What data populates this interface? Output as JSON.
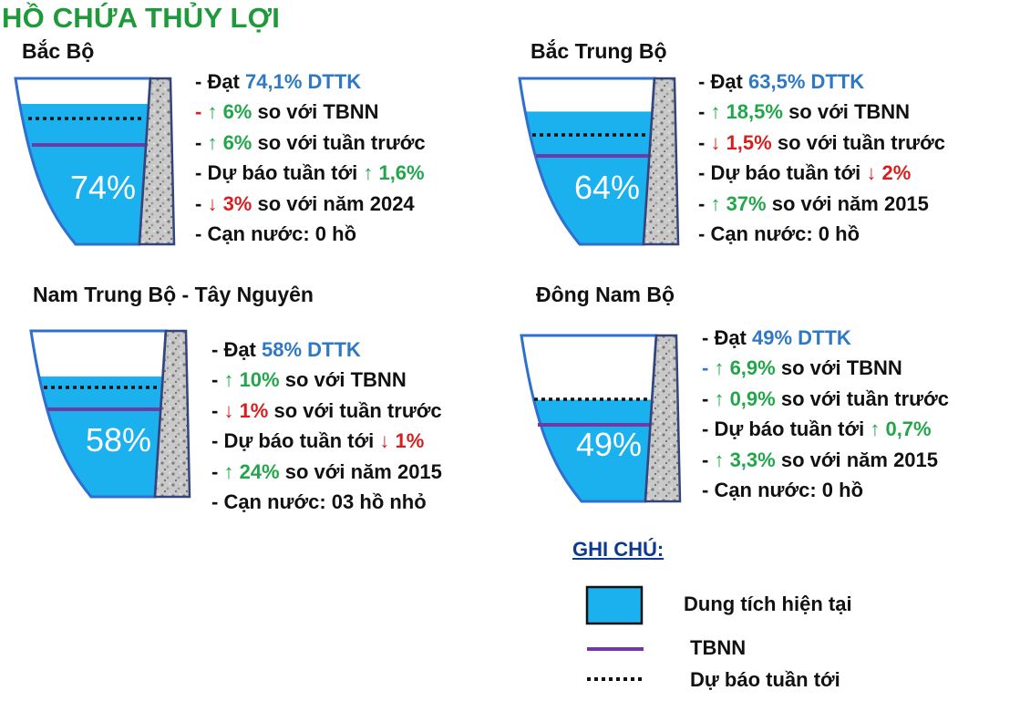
{
  "title": "HỒ CHỨA THỦY LỢI",
  "colors": {
    "title": "#1f9a3a",
    "water": "#1bb0ee",
    "water_outline": "#2f6fd1",
    "tbnn_line": "#6f3aa3",
    "up_green": "#22a64a",
    "down_red": "#d81f1f",
    "value_blue": "#2f78c4",
    "legend_title": "#0d3a8c"
  },
  "regions": [
    {
      "name": "Bắc Bộ",
      "percent": "74%",
      "fill_fraction": 0.74,
      "stats": [
        {
          "prefix": "- Đạt ",
          "prefix_color": "black",
          "parts": [
            {
              "text": "74,1% DTTK",
              "color": "blue"
            }
          ]
        },
        {
          "prefix": "- ",
          "prefix_color": "red",
          "parts": [
            {
              "text": "↑ 6%",
              "color": "green"
            },
            {
              "text": " so với TBNN",
              "color": "black"
            }
          ]
        },
        {
          "prefix": "- ",
          "prefix_color": "black",
          "parts": [
            {
              "text": "↑ 6%",
              "color": "green"
            },
            {
              "text": " so với tuần trước",
              "color": "black"
            }
          ]
        },
        {
          "prefix": "- Dự báo tuần tới ",
          "prefix_color": "black",
          "parts": [
            {
              "text": "↑ 1,6%",
              "color": "green"
            }
          ]
        },
        {
          "prefix": "- ",
          "prefix_color": "black",
          "parts": [
            {
              "text": "↓ 3%",
              "color": "red"
            },
            {
              "text": " so với năm 2024",
              "color": "black"
            }
          ]
        },
        {
          "prefix": "- Cạn nước:  0 hồ",
          "prefix_color": "black",
          "parts": []
        }
      ]
    },
    {
      "name": "Bắc Trung Bộ",
      "percent": "64%",
      "fill_fraction": 0.64,
      "stats": [
        {
          "prefix": "- Đạt ",
          "prefix_color": "black",
          "parts": [
            {
              "text": "63,5% DTTK",
              "color": "blue"
            }
          ]
        },
        {
          "prefix": "- ",
          "prefix_color": "black",
          "parts": [
            {
              "text": "↑ 18,5%",
              "color": "green"
            },
            {
              "text": " so với TBNN",
              "color": "black"
            }
          ]
        },
        {
          "prefix": "- ",
          "prefix_color": "black",
          "parts": [
            {
              "text": "↓ 1,5%",
              "color": "red"
            },
            {
              "text": " so với tuần trước",
              "color": "black"
            }
          ]
        },
        {
          "prefix": "- Dự báo tuần tới ",
          "prefix_color": "black",
          "parts": [
            {
              "text": "↓ 2%",
              "color": "red"
            }
          ]
        },
        {
          "prefix": "- ",
          "prefix_color": "black",
          "parts": [
            {
              "text": "↑ 37%",
              "color": "green"
            },
            {
              "text": " so với năm 2015",
              "color": "black"
            }
          ]
        },
        {
          "prefix": "- Cạn nước:  0 hồ",
          "prefix_color": "black",
          "parts": []
        }
      ]
    },
    {
      "name": "Nam Trung Bộ - Tây Nguyên",
      "percent": "58%",
      "fill_fraction": 0.58,
      "stats": [
        {
          "prefix": "- Đạt ",
          "prefix_color": "black",
          "parts": [
            {
              "text": "58% DTTK",
              "color": "blue"
            }
          ]
        },
        {
          "prefix": "- ",
          "prefix_color": "black",
          "parts": [
            {
              "text": "↑ 10%",
              "color": "green"
            },
            {
              "text": " so với TBNN",
              "color": "black"
            }
          ]
        },
        {
          "prefix": "- ",
          "prefix_color": "black",
          "parts": [
            {
              "text": "↓ 1%",
              "color": "red"
            },
            {
              "text": " so với tuần trước",
              "color": "black"
            }
          ]
        },
        {
          "prefix": "- Dự báo tuần tới ",
          "prefix_color": "black",
          "parts": [
            {
              "text": "↓ 1%",
              "color": "red"
            }
          ]
        },
        {
          "prefix": "- ",
          "prefix_color": "black",
          "parts": [
            {
              "text": "↑ 24%",
              "color": "green"
            },
            {
              "text": " so với năm 2015",
              "color": "black"
            }
          ]
        },
        {
          "prefix": "- Cạn nước: 03 hồ nhỏ",
          "prefix_color": "black",
          "parts": []
        }
      ]
    },
    {
      "name": "Đông Nam Bộ",
      "percent": "49%",
      "fill_fraction": 0.49,
      "stats": [
        {
          "prefix": "- Đạt ",
          "prefix_color": "black",
          "parts": [
            {
              "text": "49% DTTK",
              "color": "blue"
            }
          ]
        },
        {
          "prefix": "- ",
          "prefix_color": "blue",
          "parts": [
            {
              "text": "↑ 6,9%",
              "color": "green"
            },
            {
              "text": " so với TBNN",
              "color": "black"
            }
          ]
        },
        {
          "prefix": "- ",
          "prefix_color": "black",
          "parts": [
            {
              "text": "↑ 0,9%",
              "color": "green"
            },
            {
              "text": " so với tuần trước",
              "color": "black"
            }
          ]
        },
        {
          "prefix": "- Dự báo tuần tới ",
          "prefix_color": "black",
          "parts": [
            {
              "text": "↑ 0,7%",
              "color": "green"
            }
          ]
        },
        {
          "prefix": "- ",
          "prefix_color": "black",
          "parts": [
            {
              "text": "↑ 3,3%",
              "color": "green"
            },
            {
              "text": " so với năm 2015",
              "color": "black"
            }
          ]
        },
        {
          "prefix": "- Cạn nước: 0 hồ",
          "prefix_color": "black",
          "parts": []
        }
      ]
    }
  ],
  "legend": {
    "title": "GHI CHÚ:",
    "items": [
      {
        "label": "Dung tích hiện tại",
        "symbol": "filled-box"
      },
      {
        "label": "TBNN",
        "symbol": "purple-line"
      },
      {
        "label": "Dự báo tuần tới",
        "symbol": "dotted-line"
      }
    ]
  }
}
